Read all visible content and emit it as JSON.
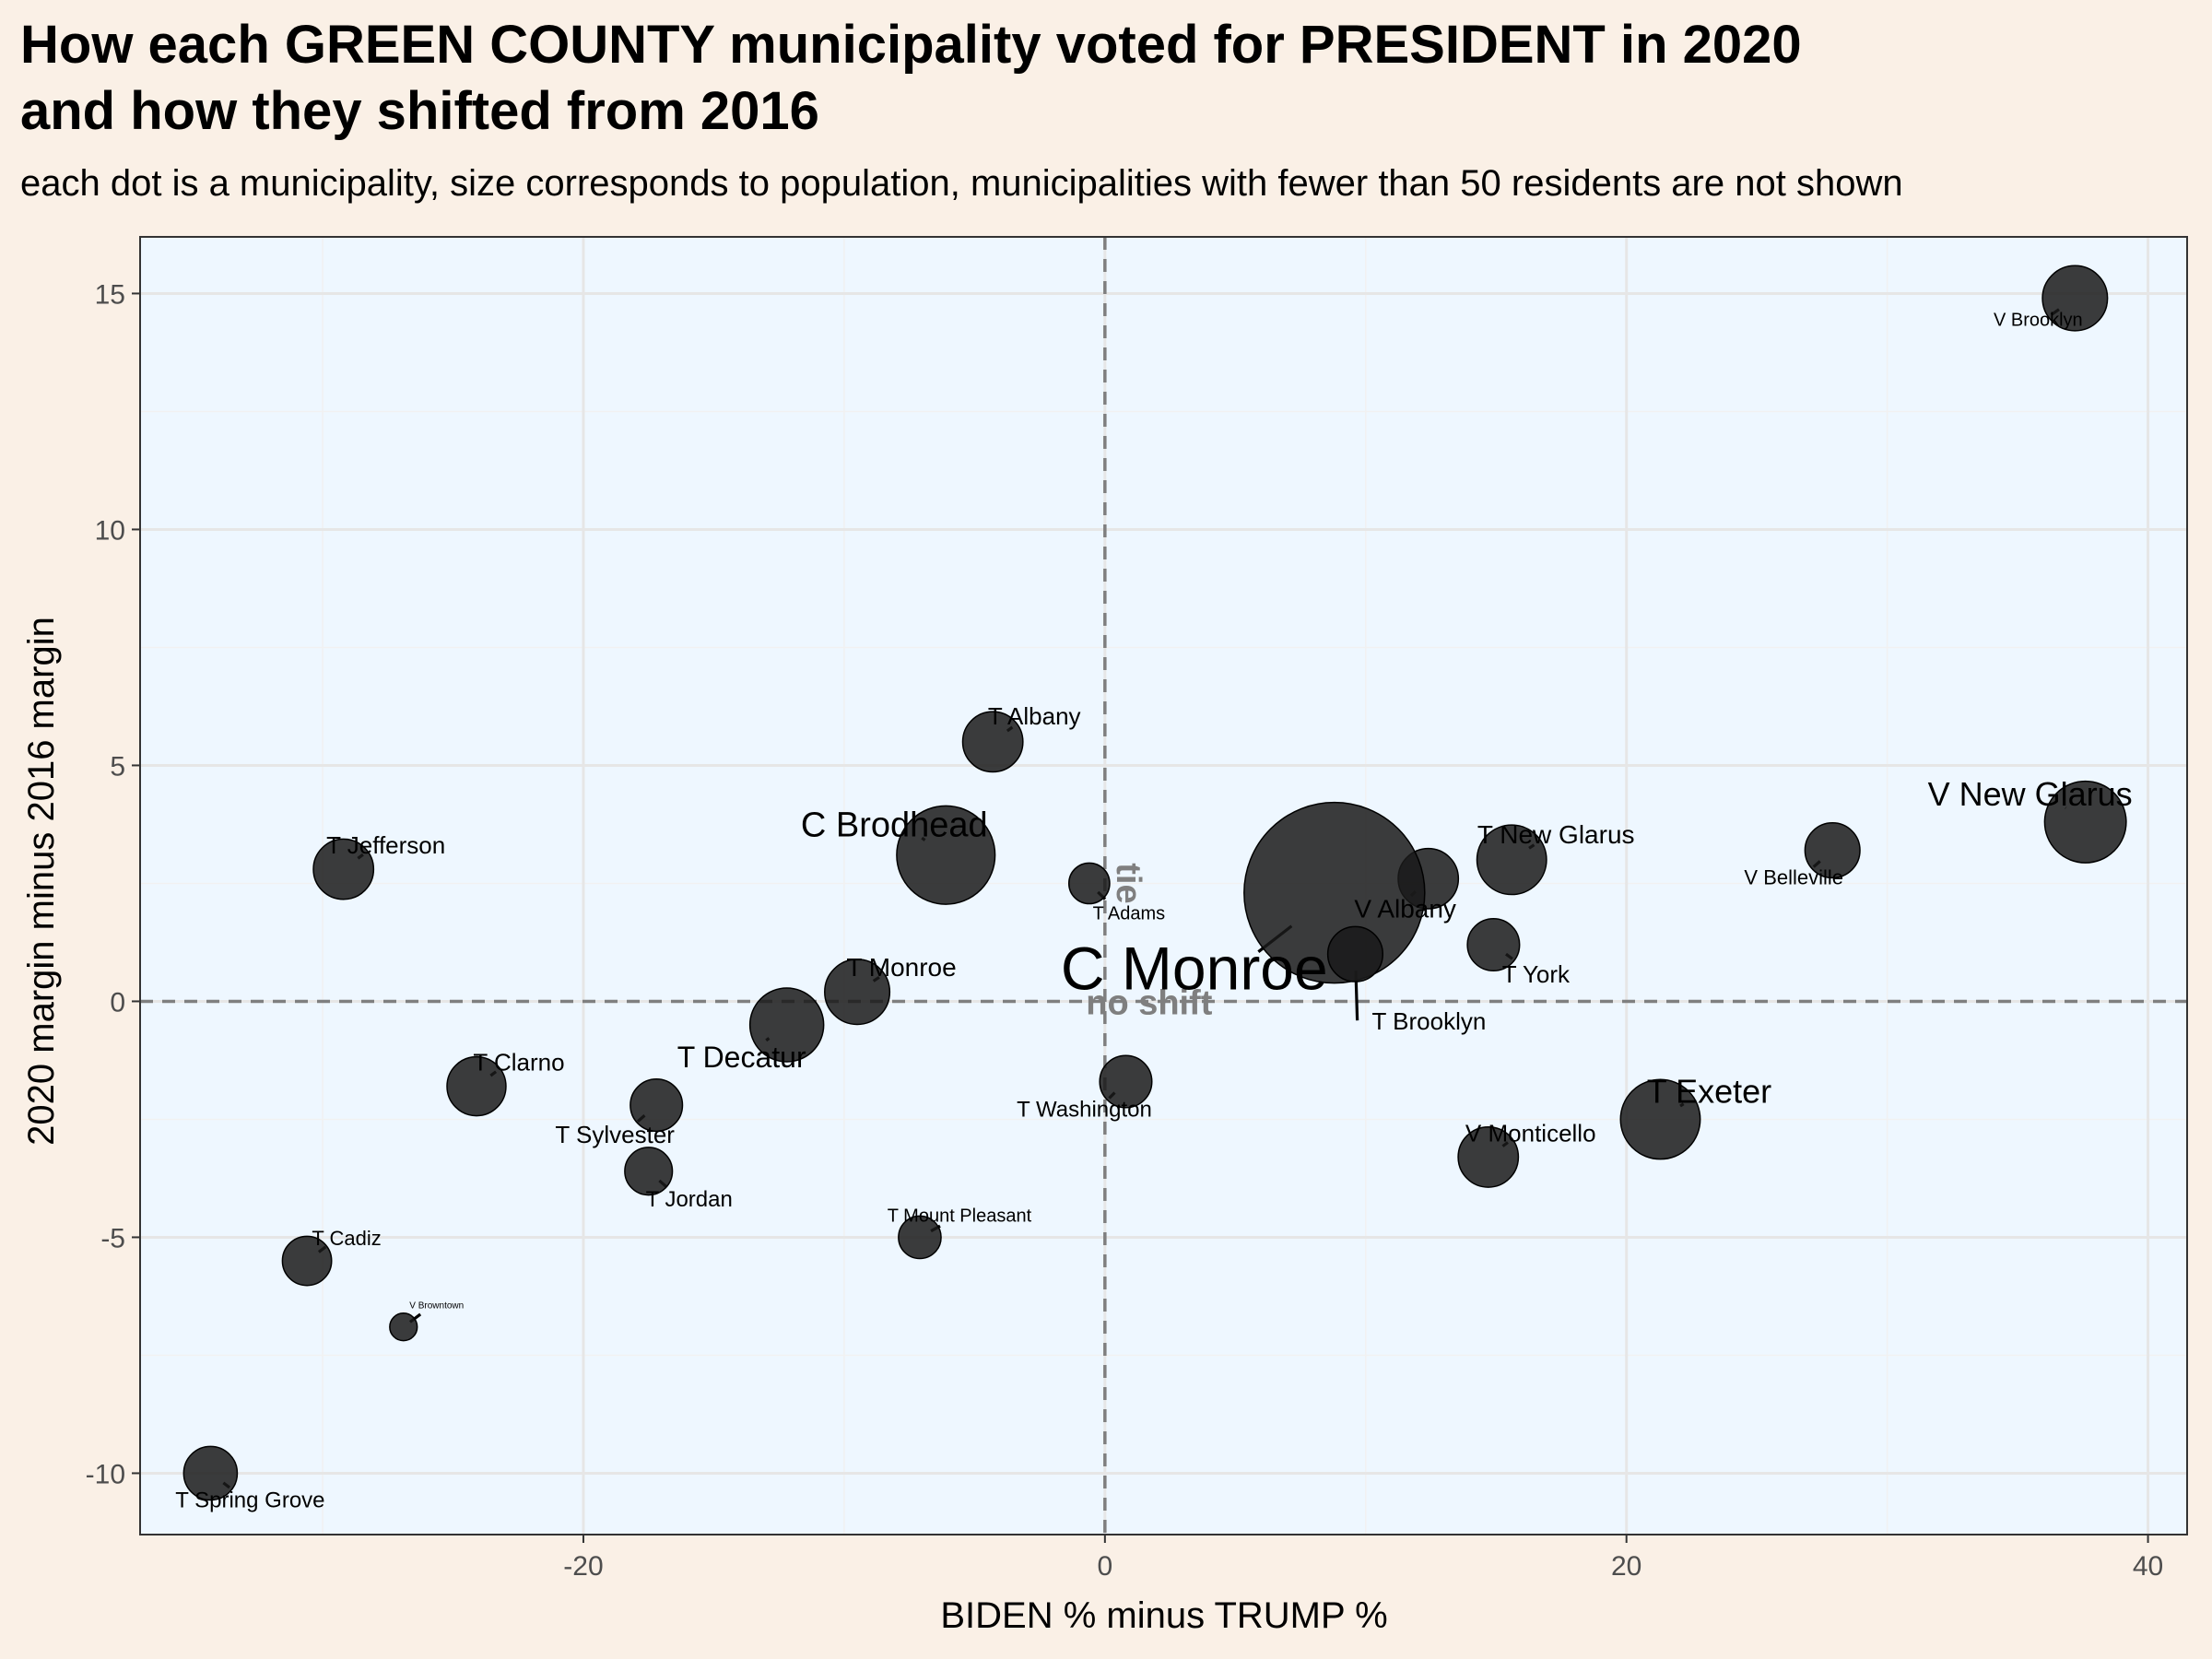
{
  "chart_data": {
    "type": "scatter",
    "title_line1": "How each GREEN COUNTY municipality voted for PRESIDENT in 2020",
    "title_line2": "and how they shifted from 2016",
    "subtitle": "each dot is a municipality, size corresponds to population, municipalities with fewer than 50 residents are not shown",
    "xlabel": "BIDEN % minus TRUMP %",
    "ylabel": "2020 margin minus 2016 margin",
    "xlim": [
      -37,
      41.5
    ],
    "ylim": [
      -11.3,
      16.2
    ],
    "x_ticks": [
      -20,
      0,
      20,
      40
    ],
    "x_tick_labels": [
      "-20",
      "0",
      "20",
      "40"
    ],
    "y_ticks": [
      -10,
      -5,
      0,
      5,
      10,
      15
    ],
    "y_tick_labels": [
      "-10",
      "-5",
      "0",
      "5",
      "10",
      "15"
    ],
    "grid": true,
    "colors": {
      "panel": "#eef7ff",
      "background": "#faf0e6",
      "grid": "#e6e6e6",
      "point": "#1a1a1a",
      "reference_line": "#7f7f7f"
    },
    "reference_labels": {
      "vertical": "tie",
      "horizontal": "no shift"
    },
    "points": [
      {
        "label": "V Brooklyn",
        "x": 37.2,
        "y": 14.9,
        "pop": 1400
      },
      {
        "label": "V New Glarus",
        "x": 37.6,
        "y": 3.8,
        "pop": 2200
      },
      {
        "label": "V Belleville",
        "x": 27.9,
        "y": 3.2,
        "pop": 1000
      },
      {
        "label": "T New Glarus",
        "x": 15.6,
        "y": 3.0,
        "pop": 1600
      },
      {
        "label": "V Albany",
        "x": 12.4,
        "y": 2.6,
        "pop": 1200
      },
      {
        "label": "C Monroe",
        "x": 8.8,
        "y": 2.3,
        "pop": 10800
      },
      {
        "label": "T Brooklyn",
        "x": 9.6,
        "y": 1.0,
        "pop": 1000
      },
      {
        "label": "T York",
        "x": 14.9,
        "y": 1.2,
        "pop": 900
      },
      {
        "label": "T Exeter",
        "x": 21.3,
        "y": -2.5,
        "pop": 2100
      },
      {
        "label": "V Monticello",
        "x": 14.7,
        "y": -3.3,
        "pop": 1200
      },
      {
        "label": "T Washington",
        "x": 0.8,
        "y": -1.7,
        "pop": 900
      },
      {
        "label": "T Adams",
        "x": -0.6,
        "y": 2.5,
        "pop": 550
      },
      {
        "label": "T Albany",
        "x": -4.3,
        "y": 5.5,
        "pop": 1200
      },
      {
        "label": "C Brodhead",
        "x": -6.1,
        "y": 3.1,
        "pop": 3200
      },
      {
        "label": "T Monroe",
        "x": -9.5,
        "y": 0.2,
        "pop": 1400
      },
      {
        "label": "T Decatur",
        "x": -12.2,
        "y": -0.5,
        "pop": 1800
      },
      {
        "label": "T Clarno",
        "x": -24.1,
        "y": -1.8,
        "pop": 1150
      },
      {
        "label": "T Sylvester",
        "x": -17.2,
        "y": -2.2,
        "pop": 900
      },
      {
        "label": "T Jordan",
        "x": -17.5,
        "y": -3.6,
        "pop": 750
      },
      {
        "label": "T Mount Pleasant",
        "x": -7.1,
        "y": -5.0,
        "pop": 600
      },
      {
        "label": "T Jefferson",
        "x": -29.2,
        "y": 2.8,
        "pop": 1200
      },
      {
        "label": "T Cadiz",
        "x": -30.6,
        "y": -5.5,
        "pop": 800
      },
      {
        "label": "V Browntown",
        "x": -26.9,
        "y": -6.9,
        "pop": 250
      },
      {
        "label": "T Spring Grove",
        "x": -34.3,
        "y": -10.0,
        "pop": 950
      }
    ]
  }
}
